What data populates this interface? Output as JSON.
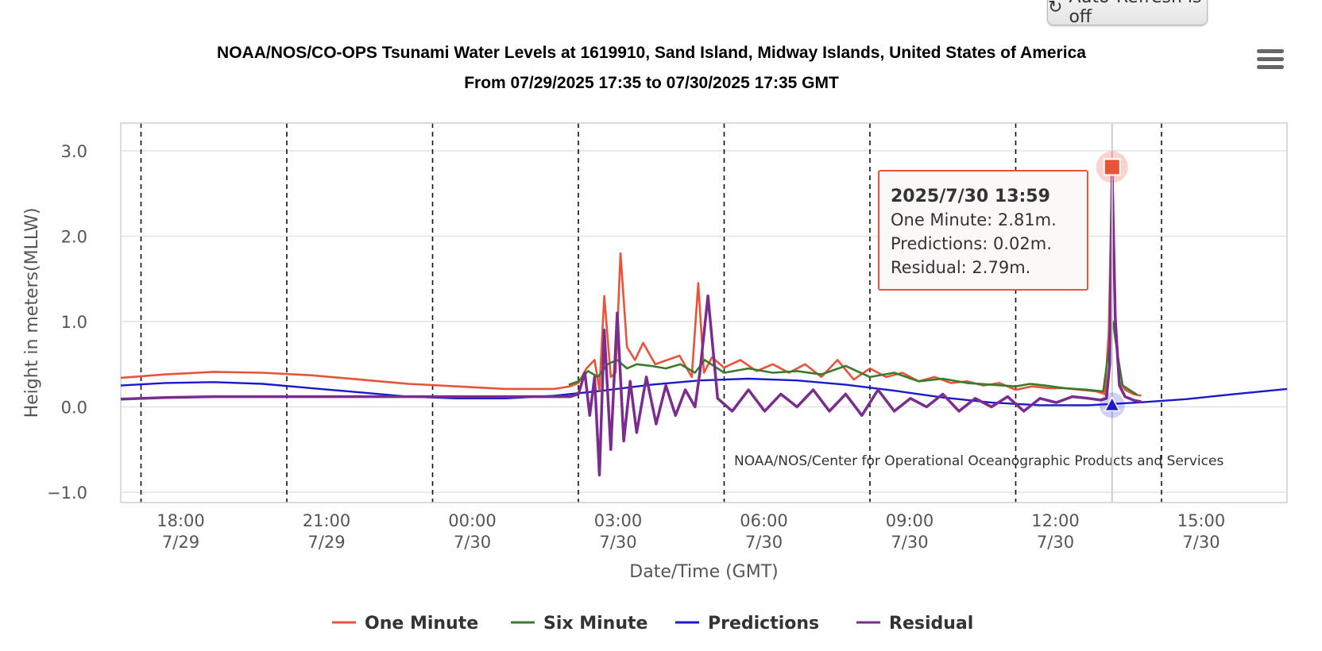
{
  "toolbar": {
    "refresh_icon": "refresh-icon",
    "refresh_label": "Auto-Refresh is off",
    "menu_icon": "hamburger-menu-icon"
  },
  "chart_data": {
    "type": "line",
    "title": "NOAA/NOS/CO-OPS Tsunami Water Levels at 1619910, Sand Island, Midway Islands, United States of America",
    "subtitle": "From 07/29/2025 17:35 to 07/30/2025 17:35 GMT",
    "xlabel": "Date/Time (GMT)",
    "ylabel": "Height in meters(MLLW)",
    "ylim": [
      -1.0,
      3.0
    ],
    "xlim": [
      "2025-07-29 17:35",
      "2025-07-30 17:35"
    ],
    "y_ticks": [
      "3.0",
      "2.0",
      "1.0",
      "0.0",
      "−1.0"
    ],
    "y_tick_values": [
      3.0,
      2.0,
      1.0,
      0.0,
      -1.0
    ],
    "x_ticks": [
      {
        "time": "2025-07-29 18:00",
        "line1": "18:00",
        "line2": "7/29"
      },
      {
        "time": "2025-07-29 21:00",
        "line1": "21:00",
        "line2": "7/29"
      },
      {
        "time": "2025-07-30 00:00",
        "line1": "00:00",
        "line2": "7/30"
      },
      {
        "time": "2025-07-30 03:00",
        "line1": "03:00",
        "line2": "7/30"
      },
      {
        "time": "2025-07-30 06:00",
        "line1": "06:00",
        "line2": "7/30"
      },
      {
        "time": "2025-07-30 09:00",
        "line1": "09:00",
        "line2": "7/30"
      },
      {
        "time": "2025-07-30 12:00",
        "line1": "12:00",
        "line2": "7/30"
      },
      {
        "time": "2025-07-30 15:00",
        "line1": "15:00",
        "line2": "7/30"
      }
    ],
    "grid": true,
    "legend_position": "bottom-center",
    "credit": "NOAA/NOS/Center for Operational Oceanographic Products and Services",
    "series": [
      {
        "name": "One Minute",
        "color": "#e8533a",
        "x": [
          "2025-07-29 17:35",
          "2025-07-29 18:30",
          "2025-07-29 19:30",
          "2025-07-29 20:30",
          "2025-07-29 21:30",
          "2025-07-29 22:30",
          "2025-07-29 23:30",
          "2025-07-30 00:30",
          "2025-07-30 01:30",
          "2025-07-30 02:30",
          "2025-07-30 02:50",
          "2025-07-30 03:00",
          "2025-07-30 03:10",
          "2025-07-30 03:20",
          "2025-07-30 03:26",
          "2025-07-30 03:32",
          "2025-07-30 03:40",
          "2025-07-30 03:46",
          "2025-07-30 03:52",
          "2025-07-30 04:00",
          "2025-07-30 04:10",
          "2025-07-30 04:20",
          "2025-07-30 04:35",
          "2025-07-30 04:50",
          "2025-07-30 05:05",
          "2025-07-30 05:20",
          "2025-07-30 05:28",
          "2025-07-30 05:35",
          "2025-07-30 05:45",
          "2025-07-30 06:00",
          "2025-07-30 06:20",
          "2025-07-30 06:40",
          "2025-07-30 07:00",
          "2025-07-30 07:20",
          "2025-07-30 07:40",
          "2025-07-30 08:00",
          "2025-07-30 08:20",
          "2025-07-30 08:40",
          "2025-07-30 09:00",
          "2025-07-30 09:20",
          "2025-07-30 09:40",
          "2025-07-30 10:00",
          "2025-07-30 10:20",
          "2025-07-30 10:40",
          "2025-07-30 11:00",
          "2025-07-30 11:20",
          "2025-07-30 11:40",
          "2025-07-30 12:00",
          "2025-07-30 12:20",
          "2025-07-30 12:40",
          "2025-07-30 13:00",
          "2025-07-30 13:20",
          "2025-07-30 13:40",
          "2025-07-30 13:50",
          "2025-07-30 13:55",
          "2025-07-30 13:59",
          "2025-07-30 14:03",
          "2025-07-30 14:08",
          "2025-07-30 14:15",
          "2025-07-30 14:25",
          "2025-07-30 14:35"
        ],
        "y": [
          0.34,
          0.38,
          0.41,
          0.4,
          0.37,
          0.32,
          0.27,
          0.24,
          0.21,
          0.21,
          0.24,
          0.28,
          0.45,
          0.55,
          0.2,
          1.3,
          0.35,
          0.4,
          1.8,
          0.7,
          0.55,
          0.75,
          0.5,
          0.55,
          0.6,
          0.35,
          1.45,
          0.4,
          0.58,
          0.46,
          0.55,
          0.42,
          0.5,
          0.4,
          0.5,
          0.35,
          0.55,
          0.32,
          0.45,
          0.35,
          0.4,
          0.3,
          0.35,
          0.28,
          0.3,
          0.25,
          0.28,
          0.2,
          0.24,
          0.22,
          0.22,
          0.2,
          0.18,
          0.15,
          0.9,
          2.81,
          1.1,
          0.3,
          0.2,
          0.15,
          0.13
        ]
      },
      {
        "name": "Six Minute",
        "color": "#3a7a2d",
        "x": [
          "2025-07-30 02:48",
          "2025-07-30 03:00",
          "2025-07-30 03:12",
          "2025-07-30 03:24",
          "2025-07-30 03:36",
          "2025-07-30 03:48",
          "2025-07-30 04:00",
          "2025-07-30 04:12",
          "2025-07-30 04:30",
          "2025-07-30 04:48",
          "2025-07-30 05:06",
          "2025-07-30 05:24",
          "2025-07-30 05:36",
          "2025-07-30 06:00",
          "2025-07-30 06:30",
          "2025-07-30 07:00",
          "2025-07-30 07:30",
          "2025-07-30 08:00",
          "2025-07-30 08:30",
          "2025-07-30 09:00",
          "2025-07-30 09:30",
          "2025-07-30 10:00",
          "2025-07-30 10:30",
          "2025-07-30 11:00",
          "2025-07-30 11:30",
          "2025-07-30 12:00",
          "2025-07-30 12:18",
          "2025-07-30 12:36",
          "2025-07-30 13:00",
          "2025-07-30 13:30",
          "2025-07-30 13:48",
          "2025-07-30 13:54",
          "2025-07-30 14:00",
          "2025-07-30 14:06",
          "2025-07-30 14:12",
          "2025-07-30 14:30"
        ],
        "y": [
          0.26,
          0.3,
          0.42,
          0.35,
          0.5,
          0.55,
          0.45,
          0.5,
          0.48,
          0.45,
          0.5,
          0.4,
          0.55,
          0.4,
          0.45,
          0.4,
          0.42,
          0.38,
          0.48,
          0.35,
          0.4,
          0.3,
          0.33,
          0.28,
          0.26,
          0.24,
          0.27,
          0.25,
          0.22,
          0.2,
          0.18,
          0.6,
          1.0,
          0.6,
          0.25,
          0.14
        ]
      },
      {
        "name": "Predictions",
        "color": "#1a1acc",
        "x": [
          "2025-07-29 17:35",
          "2025-07-29 18:30",
          "2025-07-29 19:30",
          "2025-07-29 20:30",
          "2025-07-29 21:30",
          "2025-07-29 22:30",
          "2025-07-29 23:30",
          "2025-07-30 00:30",
          "2025-07-30 01:30",
          "2025-07-30 02:30",
          "2025-07-30 03:30",
          "2025-07-30 04:30",
          "2025-07-30 05:30",
          "2025-07-30 06:30",
          "2025-07-30 07:30",
          "2025-07-30 08:30",
          "2025-07-30 09:30",
          "2025-07-30 10:30",
          "2025-07-30 11:30",
          "2025-07-30 12:30",
          "2025-07-30 13:30",
          "2025-07-30 14:30",
          "2025-07-30 15:30",
          "2025-07-30 16:30",
          "2025-07-30 17:35"
        ],
        "y": [
          0.25,
          0.28,
          0.29,
          0.27,
          0.22,
          0.17,
          0.12,
          0.1,
          0.1,
          0.13,
          0.19,
          0.26,
          0.31,
          0.33,
          0.31,
          0.26,
          0.19,
          0.11,
          0.05,
          0.02,
          0.02,
          0.05,
          0.09,
          0.15,
          0.21
        ]
      },
      {
        "name": "Residual",
        "color": "#7b2d8e",
        "x": [
          "2025-07-29 17:35",
          "2025-07-29 18:30",
          "2025-07-29 19:30",
          "2025-07-29 20:30",
          "2025-07-29 21:30",
          "2025-07-29 22:30",
          "2025-07-29 23:30",
          "2025-07-30 00:30",
          "2025-07-30 01:30",
          "2025-07-30 02:30",
          "2025-07-30 02:50",
          "2025-07-30 03:00",
          "2025-07-30 03:08",
          "2025-07-30 03:14",
          "2025-07-30 03:20",
          "2025-07-30 03:26",
          "2025-07-30 03:32",
          "2025-07-30 03:40",
          "2025-07-30 03:48",
          "2025-07-30 03:56",
          "2025-07-30 04:04",
          "2025-07-30 04:12",
          "2025-07-30 04:24",
          "2025-07-30 04:36",
          "2025-07-30 04:48",
          "2025-07-30 05:00",
          "2025-07-30 05:12",
          "2025-07-30 05:24",
          "2025-07-30 05:30",
          "2025-07-30 05:40",
          "2025-07-30 05:52",
          "2025-07-30 06:10",
          "2025-07-30 06:30",
          "2025-07-30 06:50",
          "2025-07-30 07:10",
          "2025-07-30 07:30",
          "2025-07-30 07:50",
          "2025-07-30 08:10",
          "2025-07-30 08:30",
          "2025-07-30 08:50",
          "2025-07-30 09:10",
          "2025-07-30 09:30",
          "2025-07-30 09:50",
          "2025-07-30 10:10",
          "2025-07-30 10:30",
          "2025-07-30 10:50",
          "2025-07-30 11:10",
          "2025-07-30 11:30",
          "2025-07-30 11:50",
          "2025-07-30 12:10",
          "2025-07-30 12:30",
          "2025-07-30 12:50",
          "2025-07-30 13:10",
          "2025-07-30 13:30",
          "2025-07-30 13:45",
          "2025-07-30 13:52",
          "2025-07-30 13:56",
          "2025-07-30 13:59",
          "2025-07-30 14:03",
          "2025-07-30 14:08",
          "2025-07-30 14:15",
          "2025-07-30 14:25",
          "2025-07-30 14:35"
        ],
        "y": [
          0.09,
          0.11,
          0.12,
          0.12,
          0.12,
          0.12,
          0.12,
          0.12,
          0.12,
          0.12,
          0.12,
          0.15,
          0.4,
          -0.1,
          0.35,
          -0.8,
          0.9,
          -0.5,
          1.1,
          -0.4,
          0.3,
          -0.3,
          0.35,
          -0.2,
          0.25,
          -0.1,
          0.2,
          0.0,
          0.4,
          1.3,
          0.1,
          -0.05,
          0.2,
          -0.05,
          0.15,
          0.0,
          0.2,
          -0.05,
          0.15,
          -0.1,
          0.2,
          -0.05,
          0.1,
          0.0,
          0.15,
          -0.05,
          0.1,
          0.0,
          0.12,
          -0.05,
          0.1,
          0.05,
          0.12,
          0.1,
          0.08,
          0.1,
          0.5,
          2.79,
          1.0,
          0.25,
          0.12,
          0.08,
          0.06
        ]
      }
    ],
    "tooltip": {
      "time": "2025-07-30 13:59",
      "title": "2025/7/30 13:59",
      "lines": [
        "One Minute: 2.81m.",
        "Predictions: 0.02m.",
        "Residual: 2.79m."
      ],
      "marker_values": {
        "One Minute": 2.81,
        "Predictions": 0.02
      }
    }
  }
}
